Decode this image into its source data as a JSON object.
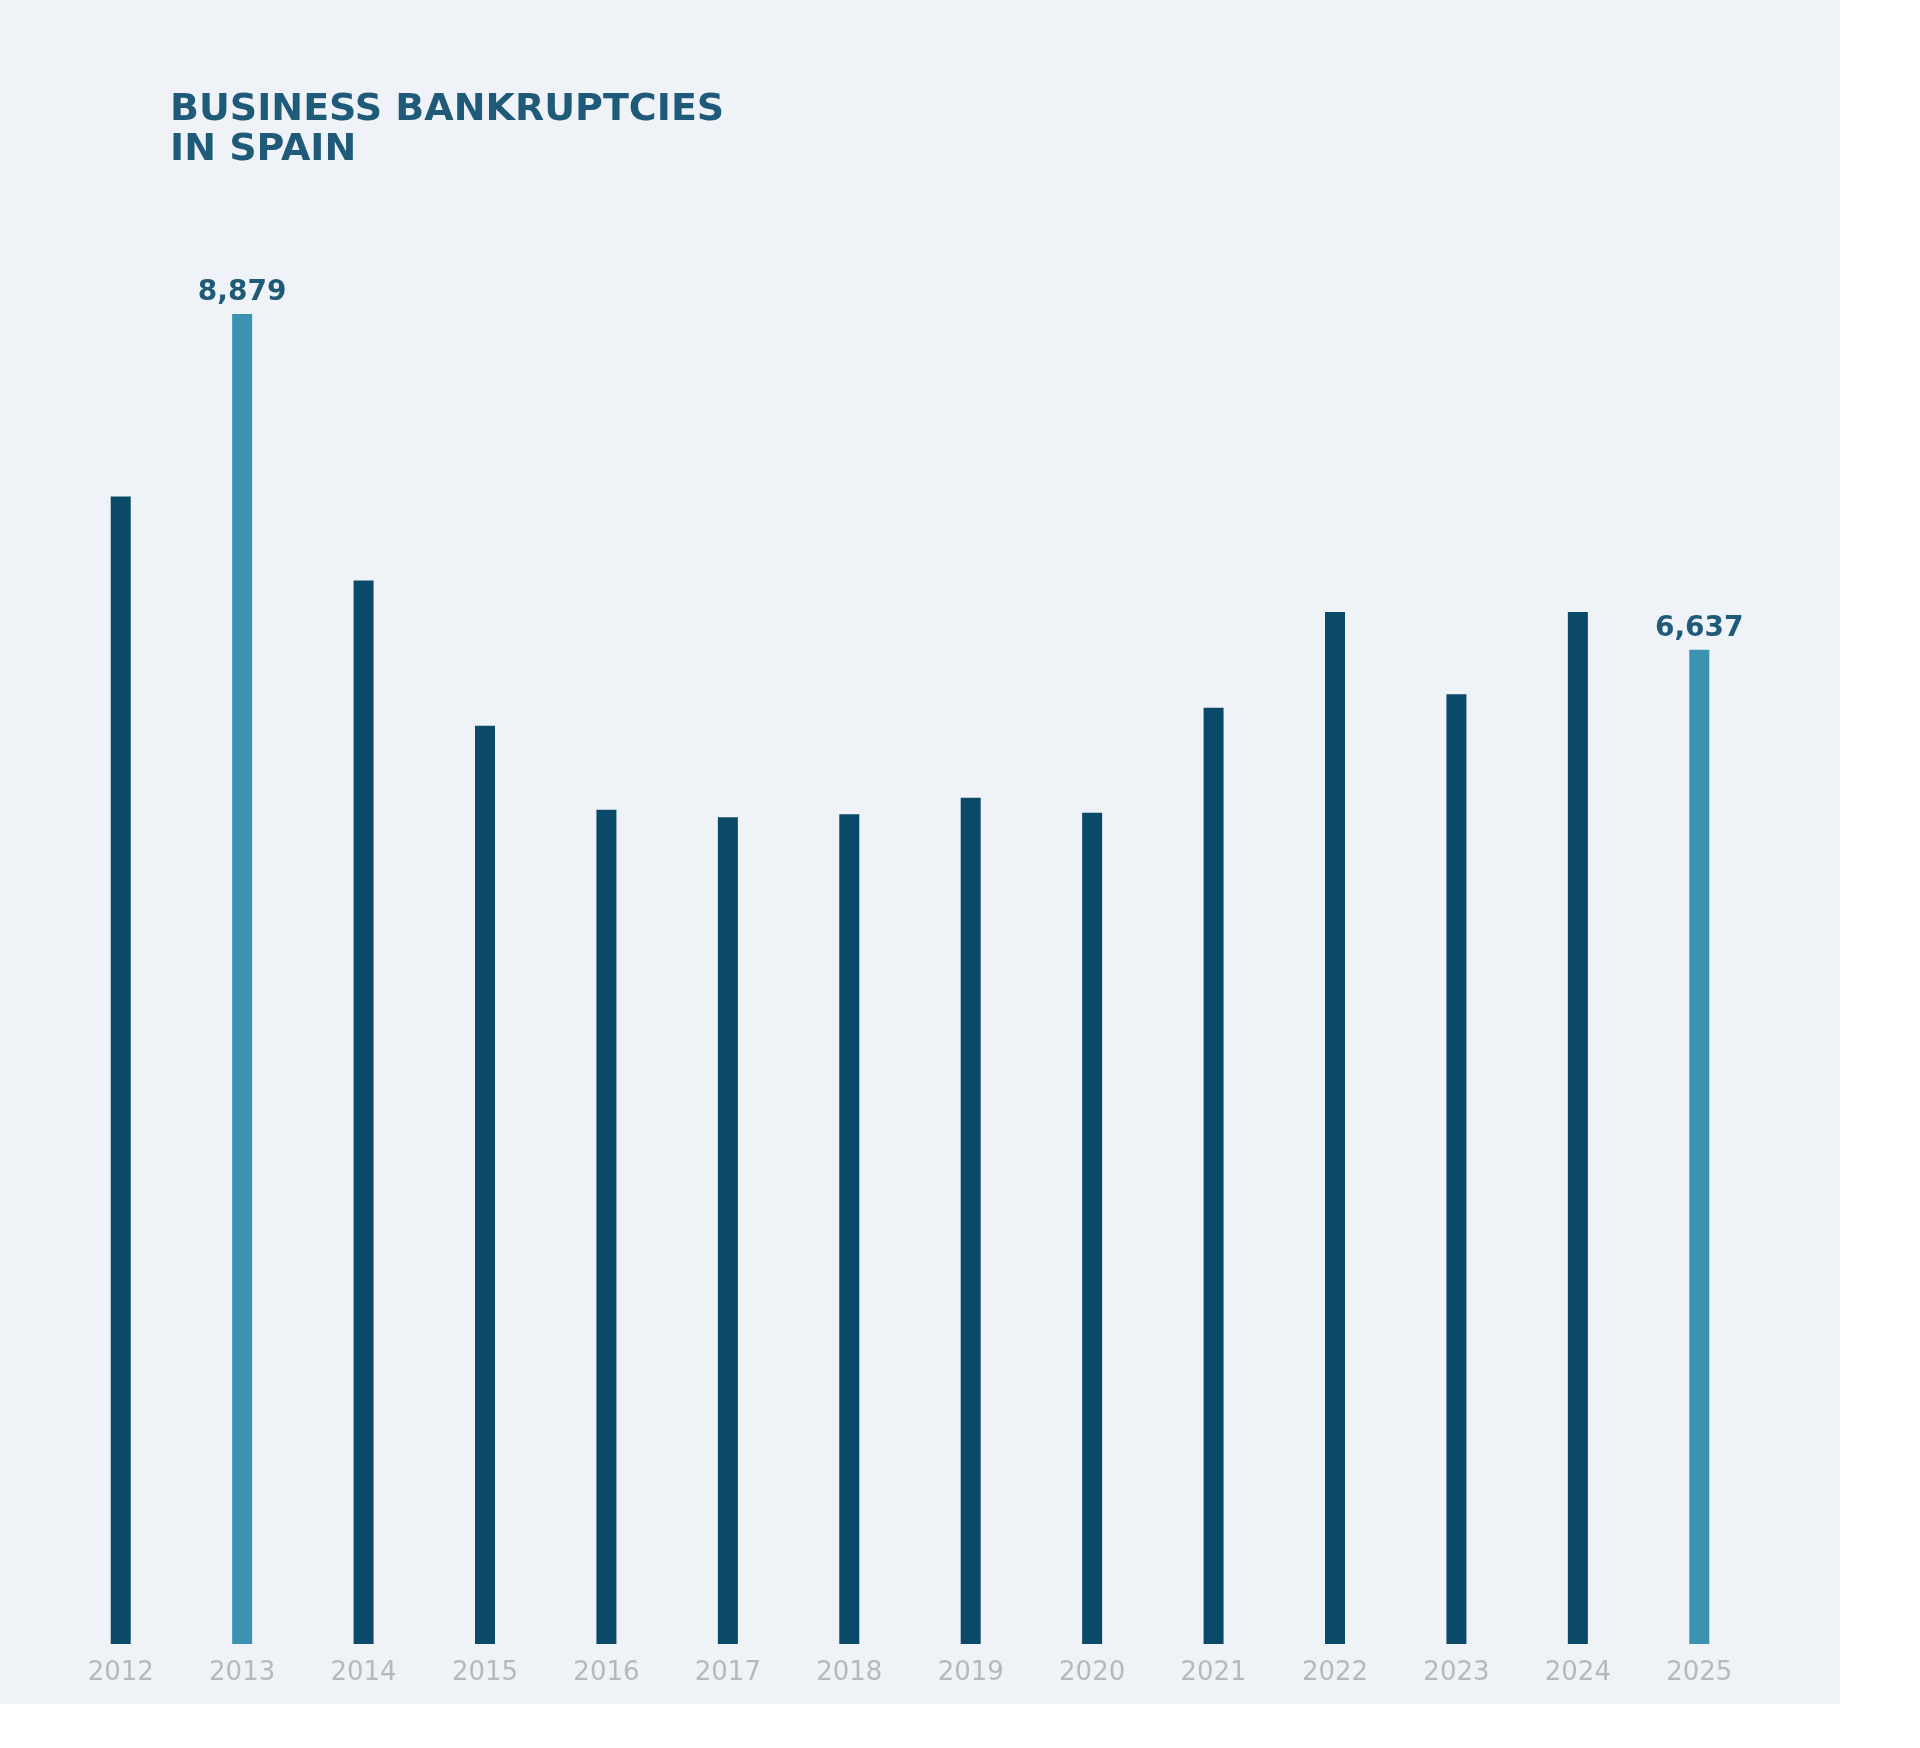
{
  "chart_data": {
    "type": "bar",
    "title": [
      "BUSINESS BANKRUPTCIES",
      "IN SPAIN"
    ],
    "categories": [
      "2012",
      "2013",
      "2014",
      "2015",
      "2016",
      "2017",
      "2018",
      "2019",
      "2020",
      "2021",
      "2022",
      "2023",
      "2024",
      "2025"
    ],
    "values": [
      7660,
      8879,
      7100,
      6130,
      5570,
      5520,
      5540,
      5650,
      5550,
      6250,
      6890,
      6340,
      6890,
      6637
    ],
    "colors": [
      "#0a4a68",
      "#3a93b0",
      "#0a4a68",
      "#0a4a68",
      "#0a4a68",
      "#0a4a68",
      "#0a4a68",
      "#0a4a68",
      "#0a4a68",
      "#0a4a68",
      "#0a4a68",
      "#0a4a68",
      "#0a4a68",
      "#3a93b0"
    ],
    "value_labels": [
      null,
      "8,879",
      null,
      null,
      null,
      null,
      null,
      null,
      null,
      null,
      null,
      null,
      null,
      "6,637"
    ],
    "tick_labels": "x"
  }
}
